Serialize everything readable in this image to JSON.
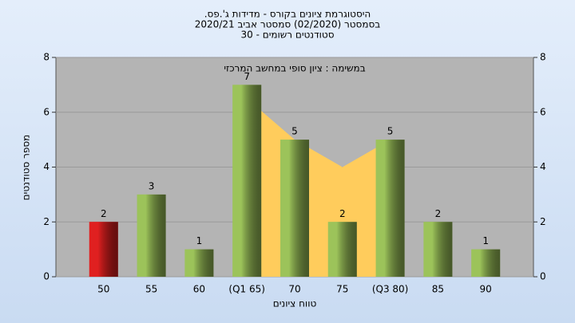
{
  "chart_data": {
    "type": "bar",
    "title": "היסטוגרמת ציונים בקורס - מדידות ג'.פס.",
    "subtitle": "בסמסטר  (02/2020)  סמסטר אביב 2020/21",
    "subtitle2": "סטודנטים רשומים - 30",
    "annotation": "במשימה : ציון סופי במחשב המרכזי",
    "x_label": "טווח ציונים",
    "y_label": "מספר סטודנטים",
    "categories": [
      "50",
      "55",
      "60",
      "(Q1 65)",
      "70",
      "75",
      "(Q3 80)",
      "85",
      "90"
    ],
    "values": [
      2,
      3,
      1,
      7,
      5,
      2,
      5,
      2,
      1
    ],
    "colors": [
      "#e02020",
      "#9cc35a",
      "#9cc35a",
      "#9cc35a",
      "#9cc35a",
      "#9cc35a",
      "#9cc35a",
      "#9cc35a",
      "#9cc35a"
    ],
    "area": {
      "color": "#ffcc5c",
      "values": [
        null,
        null,
        null,
        6.5,
        5,
        4,
        5,
        null,
        null
      ]
    },
    "ylim": [
      0,
      8
    ],
    "yticks": [
      0,
      2,
      4,
      6,
      8
    ],
    "y2lim": [
      0,
      8
    ],
    "y2ticks": [
      0,
      2,
      4,
      6,
      8
    ],
    "grid": true
  }
}
